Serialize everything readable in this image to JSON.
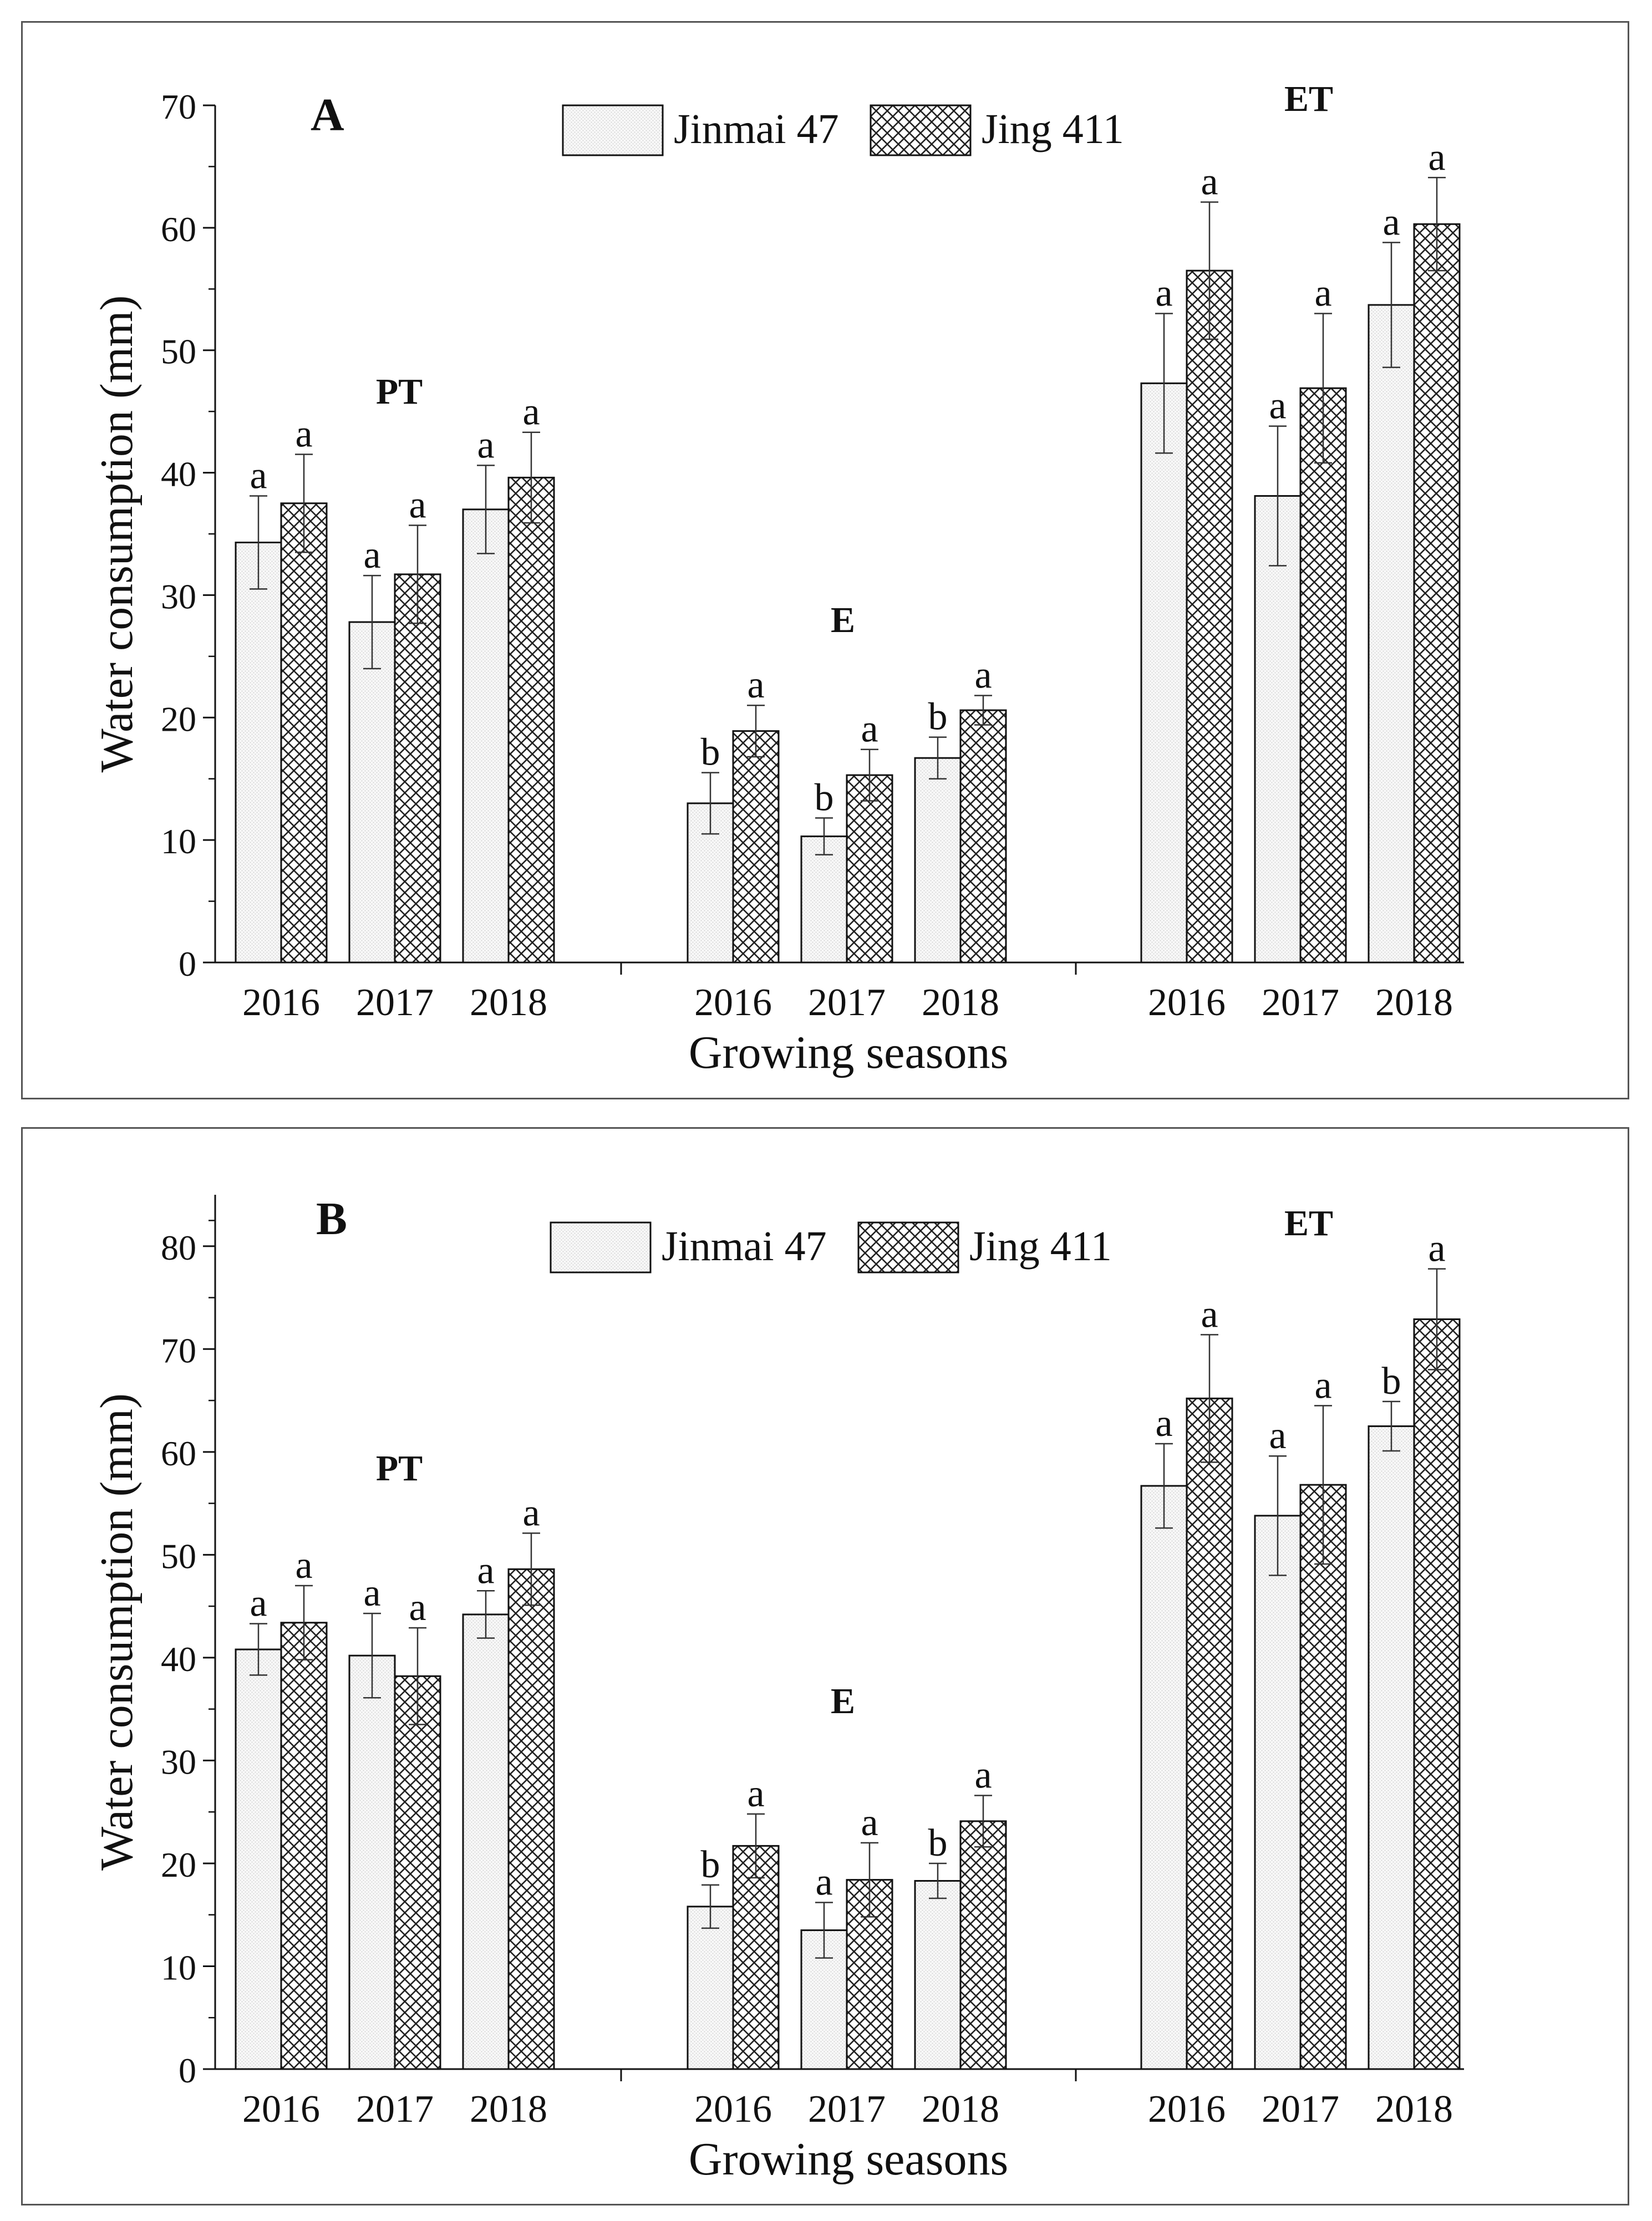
{
  "chart_data": [
    {
      "type": "bar",
      "panel": "A",
      "ylabel": "Water consumption (mm)",
      "xlabel": "Growing seasons",
      "ylim": [
        0,
        70
      ],
      "yticks": [
        0,
        10,
        20,
        30,
        40,
        50,
        60,
        70
      ],
      "legend": {
        "position": "top-center",
        "entries": [
          "Jinmai 47",
          "Jing 411"
        ]
      },
      "groups": [
        {
          "label": "PT",
          "categories": [
            "2016",
            "2017",
            "2018"
          ],
          "series": [
            {
              "name": "Jinmai 47",
              "values": [
                34.3,
                27.8,
                37.0
              ],
              "errors": [
                3.8,
                3.8,
                3.6
              ],
              "letters": [
                "a",
                "a",
                "a"
              ]
            },
            {
              "name": "Jing 411",
              "values": [
                37.5,
                31.7,
                39.6
              ],
              "errors": [
                4.0,
                4.0,
                3.7
              ],
              "letters": [
                "a",
                "a",
                "a"
              ]
            }
          ]
        },
        {
          "label": "E",
          "categories": [
            "2016",
            "2017",
            "2018"
          ],
          "series": [
            {
              "name": "Jinmai 47",
              "values": [
                13.0,
                10.3,
                16.7
              ],
              "errors": [
                2.5,
                1.5,
                1.7
              ],
              "letters": [
                "b",
                "b",
                "b"
              ]
            },
            {
              "name": "Jing 411",
              "values": [
                18.9,
                15.3,
                20.6
              ],
              "errors": [
                2.1,
                2.1,
                1.2
              ],
              "letters": [
                "a",
                "a",
                "a"
              ]
            }
          ]
        },
        {
          "label": "ET",
          "categories": [
            "2016",
            "2017",
            "2018"
          ],
          "series": [
            {
              "name": "Jinmai 47",
              "values": [
                47.3,
                38.1,
                53.7
              ],
              "errors": [
                5.7,
                5.7,
                5.1
              ],
              "letters": [
                "a",
                "a",
                "a"
              ]
            },
            {
              "name": "Jing 411",
              "values": [
                56.5,
                46.9,
                60.3
              ],
              "errors": [
                5.6,
                6.1,
                3.8
              ],
              "letters": [
                "a",
                "a",
                "a"
              ]
            }
          ]
        }
      ]
    },
    {
      "type": "bar",
      "panel": "B",
      "ylabel": "Water consumption (mm)",
      "xlabel": "Growing seasons",
      "ylim": [
        0,
        85
      ],
      "yticks": [
        0,
        10,
        20,
        30,
        40,
        50,
        60,
        70,
        80
      ],
      "legend": {
        "position": "top-center",
        "entries": [
          "Jinmai 47",
          "Jing 411"
        ]
      },
      "groups": [
        {
          "label": "PT",
          "categories": [
            "2016",
            "2017",
            "2018"
          ],
          "series": [
            {
              "name": "Jinmai 47",
              "values": [
                40.8,
                40.2,
                44.2
              ],
              "errors": [
                2.5,
                4.1,
                2.3
              ],
              "letters": [
                "a",
                "a",
                "a"
              ]
            },
            {
              "name": "Jing 411",
              "values": [
                43.4,
                38.2,
                48.6
              ],
              "errors": [
                3.6,
                4.7,
                3.5
              ],
              "letters": [
                "a",
                "a",
                "a"
              ]
            }
          ]
        },
        {
          "label": "E",
          "categories": [
            "2016",
            "2017",
            "2018"
          ],
          "series": [
            {
              "name": "Jinmai 47",
              "values": [
                15.8,
                13.5,
                18.3
              ],
              "errors": [
                2.1,
                2.7,
                1.7
              ],
              "letters": [
                "b",
                "a",
                "b"
              ]
            },
            {
              "name": "Jing 411",
              "values": [
                21.7,
                18.4,
                24.1
              ],
              "errors": [
                3.1,
                3.6,
                2.5
              ],
              "letters": [
                "a",
                "a",
                "a"
              ]
            }
          ]
        },
        {
          "label": "ET",
          "categories": [
            "2016",
            "2017",
            "2018"
          ],
          "series": [
            {
              "name": "Jinmai 47",
              "values": [
                56.7,
                53.8,
                62.5
              ],
              "errors": [
                4.1,
                5.8,
                2.4
              ],
              "letters": [
                "a",
                "a",
                "b"
              ]
            },
            {
              "name": "Jing 411",
              "values": [
                65.2,
                56.8,
                72.9
              ],
              "errors": [
                6.2,
                7.7,
                4.9
              ],
              "letters": [
                "a",
                "a",
                "a"
              ]
            }
          ]
        }
      ]
    }
  ]
}
